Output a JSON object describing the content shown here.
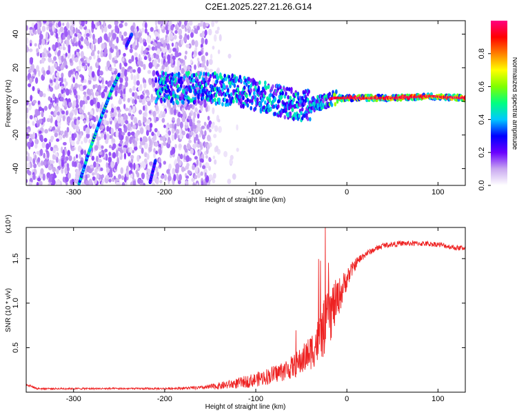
{
  "title": "C2E1.2025.227.21.26.G14",
  "chart_data": [
    {
      "type": "heatmap",
      "xlabel": "Height of straight line (km)",
      "ylabel": "Frequency (Hz)",
      "xlim": [
        -352,
        130
      ],
      "ylim": [
        -50,
        48
      ],
      "xticks": [
        -300,
        -200,
        -100,
        0,
        100
      ],
      "yticks": [
        -40,
        -20,
        0,
        20,
        40
      ],
      "colorbar": {
        "label": "Normalized spectral amplitude",
        "range": [
          0,
          1
        ],
        "ticks": [
          0.0,
          0.2,
          0.4,
          0.6,
          0.8
        ],
        "colors": [
          "#ffffff",
          "#c9a8f0",
          "#6a00ff",
          "#0000ff",
          "#00c8ff",
          "#00ff80",
          "#7fff00",
          "#ffff00",
          "#ff8000",
          "#ff0000",
          "#ff0080"
        ]
      },
      "features": [
        {
          "name": "diagonal streak",
          "points": [
            [
              -294,
              -49
            ],
            [
              -283,
              -30
            ],
            [
              -270,
              -10
            ],
            [
              -258,
              7
            ],
            [
              -250,
              16
            ]
          ],
          "amplitude": 0.45
        },
        {
          "name": "upper diagonal",
          "points": [
            [
              -242,
              33
            ],
            [
              -236,
              40
            ]
          ],
          "amplitude": 0.3
        },
        {
          "name": "lower diagonal",
          "points": [
            [
              -216,
              -48
            ],
            [
              -210,
              -35
            ]
          ],
          "amplitude": 0.3
        },
        {
          "name": "main band",
          "points": [
            [
              -210,
              8
            ],
            [
              -150,
              8
            ],
            [
              -120,
              6
            ],
            [
              -80,
              1
            ],
            [
              -50,
              -3
            ],
            [
              -30,
              -1
            ],
            [
              -15,
              2
            ],
            [
              0,
              2
            ],
            [
              50,
              2
            ],
            [
              90,
              3
            ],
            [
              130,
              2
            ]
          ],
          "amplitude": 0.9
        }
      ]
    },
    {
      "type": "line",
      "xlabel": "Height of straight line (km)",
      "ylabel": "SNR (10 * v/v)",
      "y_scale_note": "(x10⁴)",
      "xlim": [
        -352,
        130
      ],
      "ylim": [
        0,
        1.85
      ],
      "xticks": [
        -300,
        -200,
        -100,
        0,
        100
      ],
      "yticks": [
        0.5,
        1.0,
        1.5
      ],
      "color": "#ee2222",
      "x": [
        -352,
        -340,
        -300,
        -250,
        -200,
        -160,
        -140,
        -120,
        -100,
        -80,
        -60,
        -50,
        -40,
        -30,
        -25,
        -20,
        -15,
        -10,
        -5,
        0,
        10,
        20,
        30,
        40,
        60,
        80,
        100,
        120,
        130
      ],
      "y": [
        0.09,
        0.04,
        0.04,
        0.04,
        0.04,
        0.05,
        0.07,
        0.1,
        0.14,
        0.2,
        0.28,
        0.35,
        0.45,
        0.6,
        0.72,
        0.85,
        0.95,
        1.05,
        1.15,
        1.28,
        1.45,
        1.55,
        1.6,
        1.65,
        1.67,
        1.67,
        1.66,
        1.62,
        1.62
      ],
      "noise": [
        0.02,
        0.01,
        0.01,
        0.01,
        0.01,
        0.02,
        0.04,
        0.06,
        0.08,
        0.1,
        0.13,
        0.16,
        0.2,
        0.28,
        0.32,
        0.35,
        0.3,
        0.22,
        0.18,
        0.12,
        0.06,
        0.04,
        0.03,
        0.03,
        0.03,
        0.03,
        0.03,
        0.03,
        0.03
      ]
    }
  ]
}
